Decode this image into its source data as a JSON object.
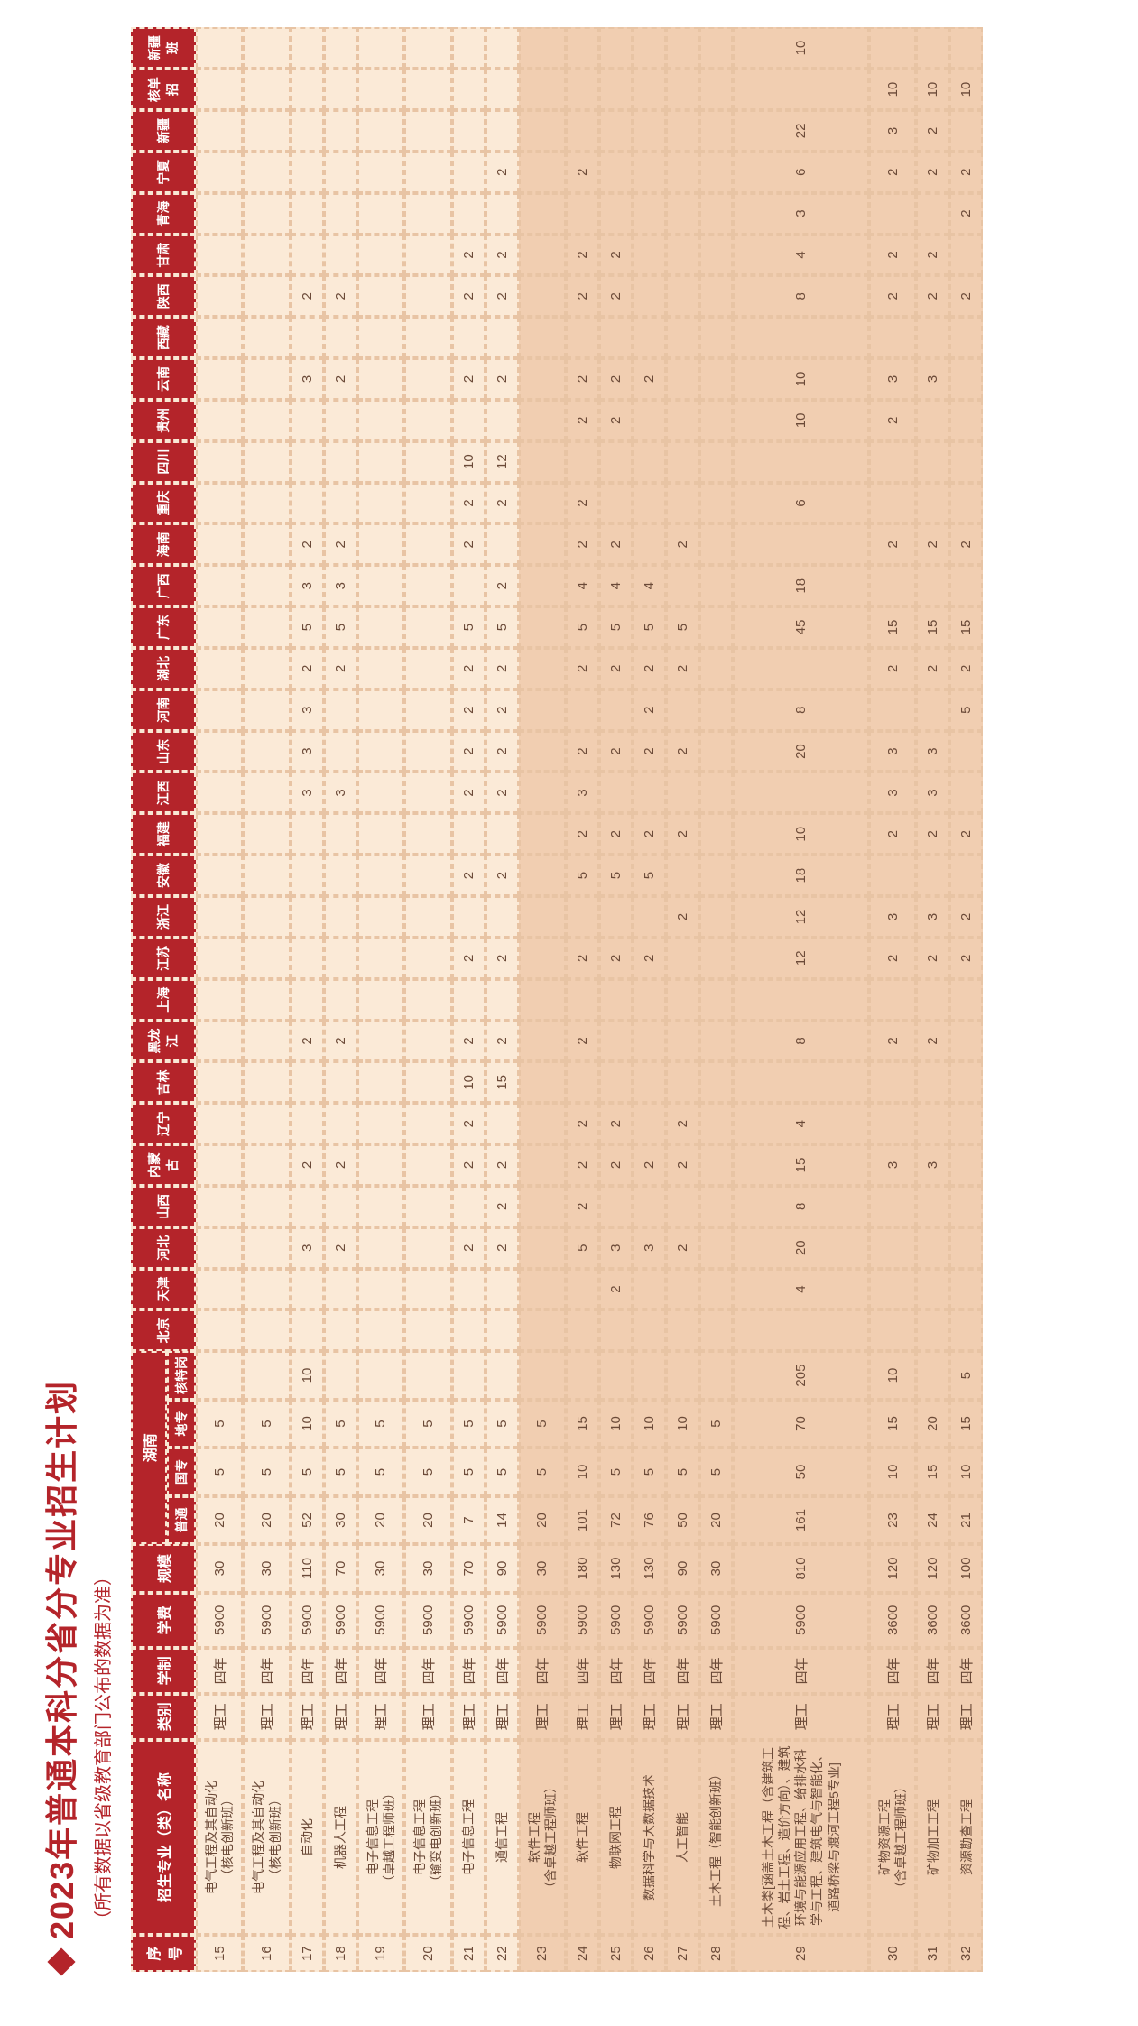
{
  "title": "2023年普通本科分省分专业招生计划",
  "subtitle": "（所有数据以省级教育部门公布的数据为准）",
  "headers": {
    "seq": "序号",
    "major": "招生专业（类）名称",
    "category": "类别",
    "duration": "学制",
    "fee": "学费",
    "scale": "规模",
    "hunan": "湖南",
    "hn_sub": [
      "普通",
      "国专",
      "地专",
      "核特岗"
    ]
  },
  "provinces": [
    "北京",
    "天津",
    "河北",
    "山西",
    "内蒙古",
    "辽宁",
    "吉林",
    "黑龙江",
    "上海",
    "江苏",
    "浙江",
    "安徽",
    "福建",
    "江西",
    "山东",
    "河南",
    "湖北",
    "广东",
    "广西",
    "海南",
    "重庆",
    "四川",
    "贵州",
    "云南",
    "西藏",
    "陕西",
    "甘肃",
    "青海",
    "宁夏",
    "新疆",
    "核单招",
    "新疆班"
  ],
  "rows": [
    {
      "section": "left",
      "tall": false,
      "seq": "15",
      "name": "电气工程及其自动化\n（核电创新班）",
      "cat": "理工",
      "dur": "四年",
      "fee": "5900",
      "scale": "30",
      "hn": [
        "20",
        "5",
        "5",
        ""
      ],
      "p": [
        "",
        "",
        "",
        "",
        "",
        "",
        "",
        "",
        "",
        "",
        "",
        "",
        "",
        "",
        "",
        "",
        "",
        "",
        "",
        "",
        "",
        "",
        "",
        "",
        "",
        "",
        "",
        "",
        "",
        "",
        "",
        ""
      ]
    },
    {
      "section": "left",
      "tall": false,
      "seq": "16",
      "name": "电气工程及其自动化\n（核电创新班）",
      "cat": "理工",
      "dur": "四年",
      "fee": "5900",
      "scale": "30",
      "hn": [
        "20",
        "5",
        "5",
        ""
      ],
      "p": [
        "",
        "",
        "",
        "",
        "",
        "",
        "",
        "",
        "",
        "",
        "",
        "",
        "",
        "",
        "",
        "",
        "",
        "",
        "",
        "",
        "",
        "",
        "",
        "",
        "",
        "",
        "",
        "",
        "",
        "",
        "",
        ""
      ]
    },
    {
      "section": "left",
      "tall": false,
      "seq": "17",
      "name": "自动化",
      "cat": "理工",
      "dur": "四年",
      "fee": "5900",
      "scale": "110",
      "hn": [
        "52",
        "5",
        "10",
        "10"
      ],
      "p": [
        "",
        "",
        "3",
        "",
        "2",
        "",
        "",
        "2",
        "",
        "",
        "",
        "",
        "",
        "3",
        "3",
        "3",
        "2",
        "5",
        "3",
        "2",
        "",
        "",
        "",
        "3",
        "",
        "2",
        "",
        "",
        "",
        "",
        "",
        ""
      ]
    },
    {
      "section": "left",
      "tall": false,
      "seq": "18",
      "name": "机器人工程",
      "cat": "理工",
      "dur": "四年",
      "fee": "5900",
      "scale": "70",
      "hn": [
        "30",
        "5",
        "5",
        ""
      ],
      "p": [
        "",
        "",
        "2",
        "",
        "2",
        "",
        "",
        "2",
        "",
        "",
        "",
        "",
        "",
        "3",
        "",
        "",
        "2",
        "5",
        "3",
        "2",
        "",
        "",
        "",
        "2",
        "",
        "2",
        "",
        "",
        "",
        "",
        "",
        ""
      ]
    },
    {
      "section": "left",
      "tall": false,
      "seq": "19",
      "name": "电子信息工程\n（卓越工程师班）",
      "cat": "理工",
      "dur": "四年",
      "fee": "5900",
      "scale": "30",
      "hn": [
        "20",
        "5",
        "5",
        ""
      ],
      "p": [
        "",
        "",
        "",
        "",
        "",
        "",
        "",
        "",
        "",
        "",
        "",
        "",
        "",
        "",
        "",
        "",
        "",
        "",
        "",
        "",
        "",
        "",
        "",
        "",
        "",
        "",
        "",
        "",
        "",
        "",
        "",
        ""
      ]
    },
    {
      "section": "left",
      "tall": false,
      "seq": "20",
      "name": "电子信息工程\n（输变电创新班）",
      "cat": "理工",
      "dur": "四年",
      "fee": "5900",
      "scale": "30",
      "hn": [
        "20",
        "5",
        "5",
        ""
      ],
      "p": [
        "",
        "",
        "",
        "",
        "",
        "",
        "",
        "",
        "",
        "",
        "",
        "",
        "",
        "",
        "",
        "",
        "",
        "",
        "",
        "",
        "",
        "",
        "",
        "",
        "",
        "",
        "",
        "",
        "",
        "",
        "",
        ""
      ]
    },
    {
      "section": "left",
      "tall": false,
      "seq": "21",
      "name": "电子信息工程",
      "cat": "理工",
      "dur": "四年",
      "fee": "5900",
      "scale": "70",
      "hn": [
        "7",
        "5",
        "5",
        ""
      ],
      "p": [
        "",
        "",
        "2",
        "",
        "2",
        "2",
        "10",
        "2",
        "",
        "2",
        "",
        "2",
        "",
        "2",
        "2",
        "2",
        "2",
        "5",
        "",
        "2",
        "2",
        "10",
        "",
        "2",
        "",
        "2",
        "2",
        "",
        "",
        "",
        "",
        ""
      ]
    },
    {
      "section": "left",
      "tall": false,
      "seq": "22",
      "name": "通信工程",
      "cat": "理工",
      "dur": "四年",
      "fee": "5900",
      "scale": "90",
      "hn": [
        "14",
        "5",
        "5",
        ""
      ],
      "p": [
        "",
        "",
        "2",
        "2",
        "2",
        "",
        "15",
        "2",
        "",
        "2",
        "",
        "2",
        "",
        "2",
        "2",
        "2",
        "2",
        "5",
        "2",
        "",
        "2",
        "12",
        "",
        "2",
        "",
        "2",
        "2",
        "",
        "2",
        "",
        "",
        ""
      ]
    },
    {
      "section": "right",
      "tall": false,
      "seq": "23",
      "name": "软件工程\n（含卓越工程师班）",
      "cat": "理工",
      "dur": "四年",
      "fee": "5900",
      "scale": "30",
      "hn": [
        "20",
        "5",
        "5",
        ""
      ],
      "p": [
        "",
        "",
        "",
        "",
        "",
        "",
        "",
        "",
        "",
        "",
        "",
        "",
        "",
        "",
        "",
        "",
        "",
        "",
        "",
        "",
        "",
        "",
        "",
        "",
        "",
        "",
        "",
        "",
        "",
        "",
        "",
        ""
      ]
    },
    {
      "section": "right",
      "tall": false,
      "seq": "24",
      "name": "软件工程",
      "cat": "理工",
      "dur": "四年",
      "fee": "5900",
      "scale": "180",
      "hn": [
        "101",
        "10",
        "15",
        ""
      ],
      "p": [
        "",
        "",
        "5",
        "2",
        "2",
        "2",
        "",
        "2",
        "",
        "2",
        "",
        "5",
        "2",
        "3",
        "2",
        "",
        "2",
        "5",
        "4",
        "2",
        "2",
        "",
        "2",
        "2",
        "",
        "2",
        "2",
        "",
        "2",
        "",
        "",
        ""
      ]
    },
    {
      "section": "right",
      "tall": false,
      "seq": "25",
      "name": "物联网工程",
      "cat": "理工",
      "dur": "四年",
      "fee": "5900",
      "scale": "130",
      "hn": [
        "72",
        "5",
        "10",
        ""
      ],
      "p": [
        "",
        "2",
        "3",
        "",
        "2",
        "2",
        "",
        "",
        "",
        "2",
        "",
        "5",
        "2",
        "",
        "2",
        "",
        "2",
        "5",
        "4",
        "2",
        "",
        "",
        "2",
        "2",
        "",
        "2",
        "2",
        "",
        "",
        "",
        "",
        ""
      ]
    },
    {
      "section": "right",
      "tall": false,
      "seq": "26",
      "name": "数据科学与大数据技术",
      "cat": "理工",
      "dur": "四年",
      "fee": "5900",
      "scale": "130",
      "hn": [
        "76",
        "5",
        "10",
        ""
      ],
      "p": [
        "",
        "",
        "3",
        "",
        "2",
        "",
        "",
        "",
        "",
        "2",
        "",
        "5",
        "2",
        "",
        "2",
        "2",
        "2",
        "5",
        "4",
        "",
        "",
        "",
        "",
        "2",
        "",
        "",
        "",
        "",
        "",
        "",
        "",
        ""
      ]
    },
    {
      "section": "right",
      "tall": false,
      "seq": "27",
      "name": "人工智能",
      "cat": "理工",
      "dur": "四年",
      "fee": "5900",
      "scale": "90",
      "hn": [
        "50",
        "5",
        "10",
        ""
      ],
      "p": [
        "",
        "",
        "2",
        "",
        "2",
        "2",
        "",
        "",
        "",
        "",
        "2",
        "",
        "2",
        "",
        "2",
        "",
        "2",
        "5",
        "",
        "2",
        "",
        "",
        "",
        "",
        "",
        "",
        "",
        "",
        "",
        "",
        "",
        ""
      ]
    },
    {
      "section": "right",
      "tall": false,
      "seq": "28",
      "name": "土木工程（智能创新班）",
      "cat": "理工",
      "dur": "四年",
      "fee": "5900",
      "scale": "30",
      "hn": [
        "20",
        "5",
        "5",
        ""
      ],
      "p": [
        "",
        "",
        "",
        "",
        "",
        "",
        "",
        "",
        "",
        "",
        "",
        "",
        "",
        "",
        "",
        "",
        "",
        "",
        "",
        "",
        "",
        "",
        "",
        "",
        "",
        "",
        "",
        "",
        "",
        "",
        "",
        ""
      ]
    },
    {
      "section": "right",
      "tall": true,
      "seq": "29",
      "name": "土木类[涵盖土木工程（含建筑工程、岩土工程、造价方向）、建筑环境与能源应用工程、给排水科学与工程、建筑电气与智能化、道路桥梁与渡河工程5专业]",
      "cat": "理工",
      "dur": "四年",
      "fee": "5900",
      "scale": "810",
      "hn": [
        "161",
        "50",
        "70",
        "205"
      ],
      "p": [
        "",
        "4",
        "20",
        "8",
        "15",
        "4",
        "",
        "8",
        "",
        "12",
        "12",
        "18",
        "10",
        "",
        "20",
        "8",
        "",
        "45",
        "18",
        "",
        "6",
        "",
        "10",
        "10",
        "",
        "8",
        "4",
        "3",
        "6",
        "22",
        "",
        "10"
      ]
    },
    {
      "section": "right",
      "tall": false,
      "seq": "30",
      "name": "矿物资源工程\n（含卓越工程师班）",
      "cat": "理工",
      "dur": "四年",
      "fee": "3600",
      "scale": "120",
      "hn": [
        "23",
        "10",
        "15",
        "10"
      ],
      "p": [
        "",
        "",
        "",
        "",
        "3",
        "",
        "",
        "2",
        "",
        "2",
        "3",
        "",
        "2",
        "3",
        "3",
        "",
        "2",
        "15",
        "",
        "2",
        "",
        "",
        "2",
        "3",
        "",
        "2",
        "2",
        "",
        "2",
        "3",
        "10",
        ""
      ]
    },
    {
      "section": "right",
      "tall": false,
      "seq": "31",
      "name": "矿物加工工程",
      "cat": "理工",
      "dur": "四年",
      "fee": "3600",
      "scale": "120",
      "hn": [
        "24",
        "15",
        "20",
        ""
      ],
      "p": [
        "",
        "",
        "",
        "",
        "3",
        "",
        "",
        "2",
        "",
        "2",
        "3",
        "",
        "2",
        "3",
        "3",
        "",
        "2",
        "15",
        "",
        "2",
        "",
        "",
        "",
        "3",
        "",
        "2",
        "2",
        "",
        "2",
        "2",
        "10",
        ""
      ]
    },
    {
      "section": "right",
      "tall": false,
      "seq": "32",
      "name": "资源勘查工程",
      "cat": "理工",
      "dur": "四年",
      "fee": "3600",
      "scale": "100",
      "hn": [
        "21",
        "10",
        "15",
        "5"
      ],
      "p": [
        "",
        "",
        "",
        "",
        "",
        "",
        "",
        "",
        "",
        "2",
        "2",
        "",
        "2",
        "",
        "",
        "5",
        "2",
        "15",
        "",
        "2",
        "",
        "",
        "",
        "",
        "",
        "2",
        "",
        "2",
        "2",
        "",
        "10",
        ""
      ]
    }
  ]
}
